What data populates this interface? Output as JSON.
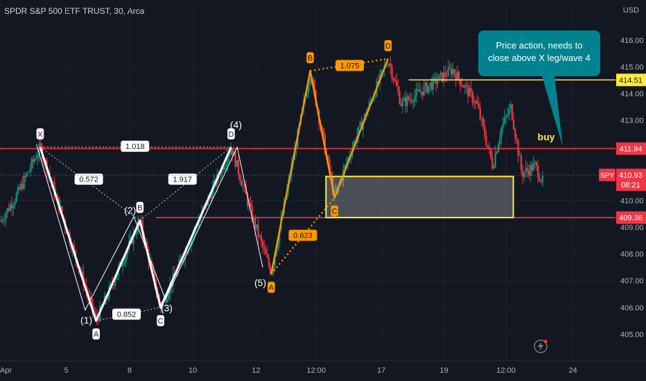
{
  "header": {
    "title": "SPDR S&P 500 ETF TRUST, 30, Arca",
    "currency": "USD"
  },
  "chart_data": {
    "type": "candlestick",
    "ylim": [
      404,
      416.8
    ],
    "y_ticks": [
      405,
      406,
      407,
      408,
      409,
      410,
      411,
      412,
      413,
      414,
      415,
      416
    ],
    "x_ticks": [
      {
        "label": "Apr",
        "pos": 0.0
      },
      {
        "label": "5",
        "pos": 5.45
      },
      {
        "label": "8",
        "pos": 10.65
      },
      {
        "label": "10",
        "pos": 15.85
      },
      {
        "label": "12",
        "pos": 21.05
      },
      {
        "label": "12:00",
        "pos": 26.0
      },
      {
        "label": "17",
        "pos": 31.35
      },
      {
        "label": "19",
        "pos": 36.5
      },
      {
        "label": "12:00",
        "pos": 41.6
      },
      {
        "label": "24",
        "pos": 47.1
      }
    ],
    "x_range": [
      0,
      50.6
    ],
    "price_levels": [
      {
        "label": "414.51",
        "value": 414.51,
        "color": "#ffeb3b"
      },
      {
        "label": "411.94",
        "value": 411.94,
        "color": "#f23645"
      },
      {
        "label": "409.36",
        "value": 409.36,
        "color": "#f23645"
      }
    ],
    "current_price": {
      "symbol": "SPY",
      "value": 410.93,
      "label": "410.93",
      "countdown": "08:21",
      "color": "#f23645"
    },
    "zone": {
      "x0": 26.8,
      "x1": 42.2,
      "y_top": 410.9,
      "y_bottom": 409.36,
      "color": "#ffeb3b"
    },
    "white_harmonic": {
      "points": [
        {
          "label": "X",
          "x": 3.3,
          "y": 412.0
        },
        {
          "label": "A",
          "x": 7.9,
          "y": 405.5
        },
        {
          "label": "B",
          "x": 11.5,
          "y": 409.25
        },
        {
          "label": "C",
          "x": 13.2,
          "y": 406.0
        },
        {
          "label": "D",
          "x": 19.0,
          "y": 412.0
        }
      ],
      "ratios": [
        {
          "label": "1.018",
          "x": 11.1,
          "y": 412.03
        },
        {
          "label": "0.572",
          "x": 7.3,
          "y": 410.8
        },
        {
          "label": "1.917",
          "x": 15.0,
          "y": 410.8
        },
        {
          "label": "0.852",
          "x": 10.4,
          "y": 405.75
        }
      ]
    },
    "wave_labels": [
      {
        "label": "(1)",
        "x": 7.1,
        "y": 405.4
      },
      {
        "label": "(2)",
        "x": 10.7,
        "y": 409.5
      },
      {
        "label": "(3)",
        "x": 13.7,
        "y": 405.85
      },
      {
        "label": "(4)",
        "x": 19.4,
        "y": 412.7
      },
      {
        "label": "(5)",
        "x": 21.4,
        "y": 406.8
      }
    ],
    "orange_harmonic": {
      "points": [
        {
          "label": "A",
          "x": 22.3,
          "y": 407.25
        },
        {
          "label": "B",
          "x": 25.5,
          "y": 414.85
        },
        {
          "label": "C",
          "x": 27.5,
          "y": 410.1
        },
        {
          "label": "D",
          "x": 31.9,
          "y": 415.3
        }
      ],
      "ratios": [
        {
          "label": "1.075",
          "x": 28.75,
          "y": 415.05
        },
        {
          "label": "0.623",
          "x": 24.9,
          "y": 408.7
        }
      ]
    },
    "annotations": [
      {
        "label": "buy",
        "x": 44.9,
        "y": 412.25
      }
    ],
    "callout": {
      "line1": "Price action, needs to",
      "line2": "close above X leg/wave 4"
    }
  }
}
